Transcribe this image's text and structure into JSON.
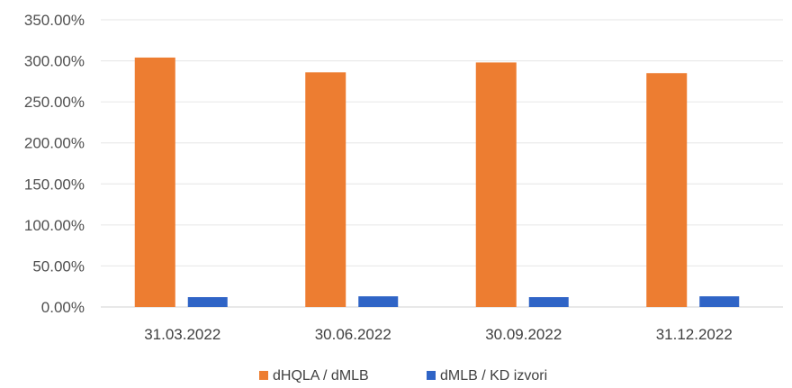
{
  "chart_data": {
    "type": "bar",
    "categories": [
      "31.03.2022",
      "30.06.2022",
      "30.09.2022",
      "31.12.2022"
    ],
    "series": [
      {
        "name": "dHQLA / dMLB",
        "values": [
          304,
          286,
          298,
          285
        ],
        "color": "#ED7D31"
      },
      {
        "name": "dMLB / KD izvori",
        "values": [
          12,
          13,
          12,
          13
        ],
        "color": "#2F64C6"
      }
    ],
    "y_ticks": [
      "0.00%",
      "50.00%",
      "100.00%",
      "150.00%",
      "200.00%",
      "250.00%",
      "300.00%",
      "350.00%"
    ],
    "ylim": [
      0,
      350
    ],
    "ylabel": "",
    "xlabel": "",
    "title": "",
    "grid": true,
    "legend": "bottom-center"
  }
}
